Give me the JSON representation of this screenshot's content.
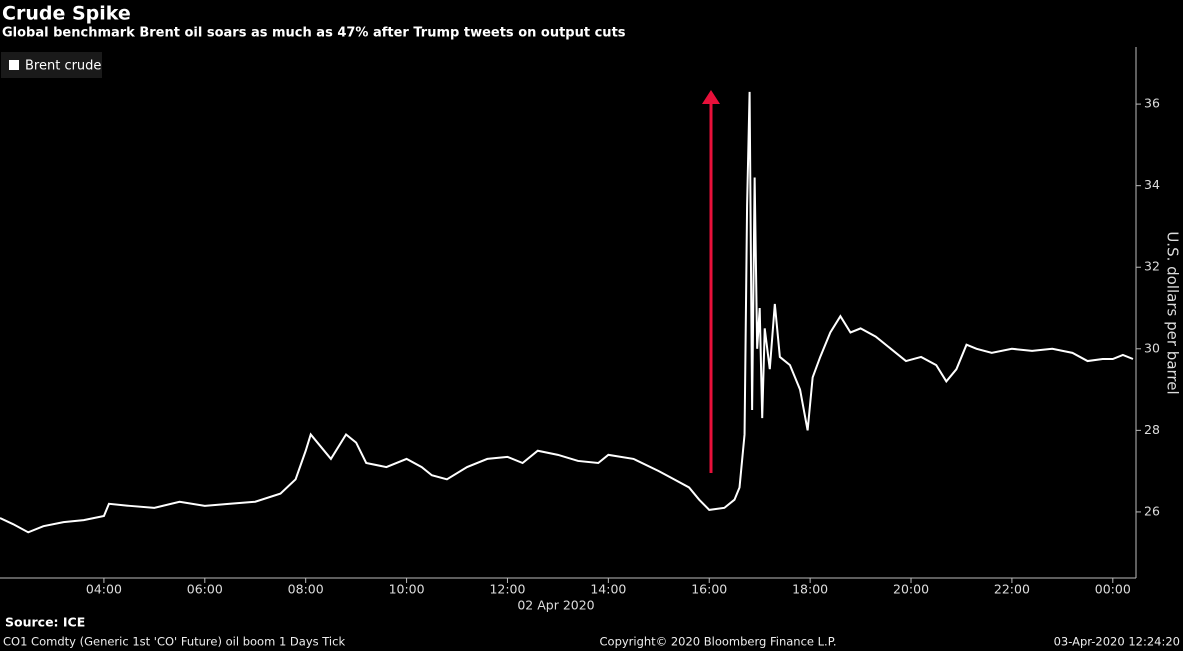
{
  "chart_data": {
    "type": "line",
    "title": "Crude Spike",
    "subtitle": "Global benchmark Brent oil soars as much as 47% after Trump tweets on output cuts",
    "y_label": "U.S. dollars per barrel",
    "x_date_label": "02 Apr 2020",
    "source": "Source: ICE",
    "footer_left": "CO1 Comdty (Generic 1st 'CO' Future) oil boom 1 Days  Tick",
    "footer_center": "Copyright© 2020 Bloomberg Finance L.P.",
    "footer_right": "03-Apr-2020 12:24:20",
    "x": [
      1.94,
      2.2,
      2.5,
      2.8,
      3.2,
      3.6,
      4.0,
      4.1,
      4.5,
      5.0,
      5.5,
      6.0,
      6.5,
      7.0,
      7.5,
      7.8,
      8.0,
      8.1,
      8.3,
      8.5,
      8.8,
      9.0,
      9.2,
      9.6,
      10.0,
      10.3,
      10.5,
      10.8,
      11.2,
      11.6,
      12.0,
      12.3,
      12.6,
      13.0,
      13.4,
      13.8,
      14.0,
      14.5,
      15.0,
      15.3,
      15.6,
      15.8,
      16.0,
      16.3,
      16.5,
      16.6,
      16.7,
      16.75,
      16.8,
      16.85,
      16.9,
      16.95,
      17.0,
      17.05,
      17.1,
      17.2,
      17.3,
      17.4,
      17.6,
      17.8,
      17.95,
      18.05,
      18.2,
      18.4,
      18.6,
      18.8,
      19.0,
      19.3,
      19.6,
      19.9,
      20.2,
      20.5,
      20.7,
      20.9,
      21.1,
      21.3,
      21.6,
      22.0,
      22.4,
      22.8,
      23.2,
      23.5,
      23.8,
      24.0,
      24.2,
      24.4
    ],
    "series": [
      {
        "name": "Brent crude",
        "color": "#ffffff",
        "values": [
          25.85,
          25.7,
          25.5,
          25.65,
          25.75,
          25.8,
          25.9,
          26.2,
          26.15,
          26.1,
          26.25,
          26.15,
          26.2,
          26.25,
          26.45,
          26.8,
          27.5,
          27.9,
          27.6,
          27.3,
          27.9,
          27.7,
          27.2,
          27.1,
          27.3,
          27.1,
          26.9,
          26.8,
          27.1,
          27.3,
          27.35,
          27.2,
          27.5,
          27.4,
          27.25,
          27.2,
          27.4,
          27.3,
          27.0,
          26.8,
          26.6,
          26.3,
          26.05,
          26.1,
          26.3,
          26.6,
          27.9,
          33.5,
          36.3,
          28.5,
          34.2,
          30.0,
          31.0,
          28.3,
          30.5,
          29.5,
          31.1,
          29.8,
          29.6,
          29.0,
          28.0,
          29.3,
          29.8,
          30.4,
          30.8,
          30.4,
          30.5,
          30.3,
          30.0,
          29.7,
          29.8,
          29.6,
          29.2,
          29.5,
          30.1,
          30.0,
          29.9,
          30.0,
          29.95,
          30.0,
          29.9,
          29.7,
          29.75,
          29.75,
          29.85,
          29.75
        ]
      }
    ],
    "xlim": [
      1.94,
      24.46
    ],
    "ylim": [
      24.38,
      37.4
    ],
    "xticks": [
      {
        "value": 4,
        "label": "04:00"
      },
      {
        "value": 6,
        "label": "06:00"
      },
      {
        "value": 8,
        "label": "08:00"
      },
      {
        "value": 10,
        "label": "10:00"
      },
      {
        "value": 12,
        "label": "12:00"
      },
      {
        "value": 14,
        "label": "14:00"
      },
      {
        "value": 16,
        "label": "16:00"
      },
      {
        "value": 18,
        "label": "18:00"
      },
      {
        "value": 20,
        "label": "20:00"
      },
      {
        "value": 22,
        "label": "22:00"
      },
      {
        "value": 24,
        "label": "00:00"
      }
    ],
    "yticks": [
      26,
      28,
      30,
      32,
      34,
      36
    ],
    "legend": "top-left"
  }
}
